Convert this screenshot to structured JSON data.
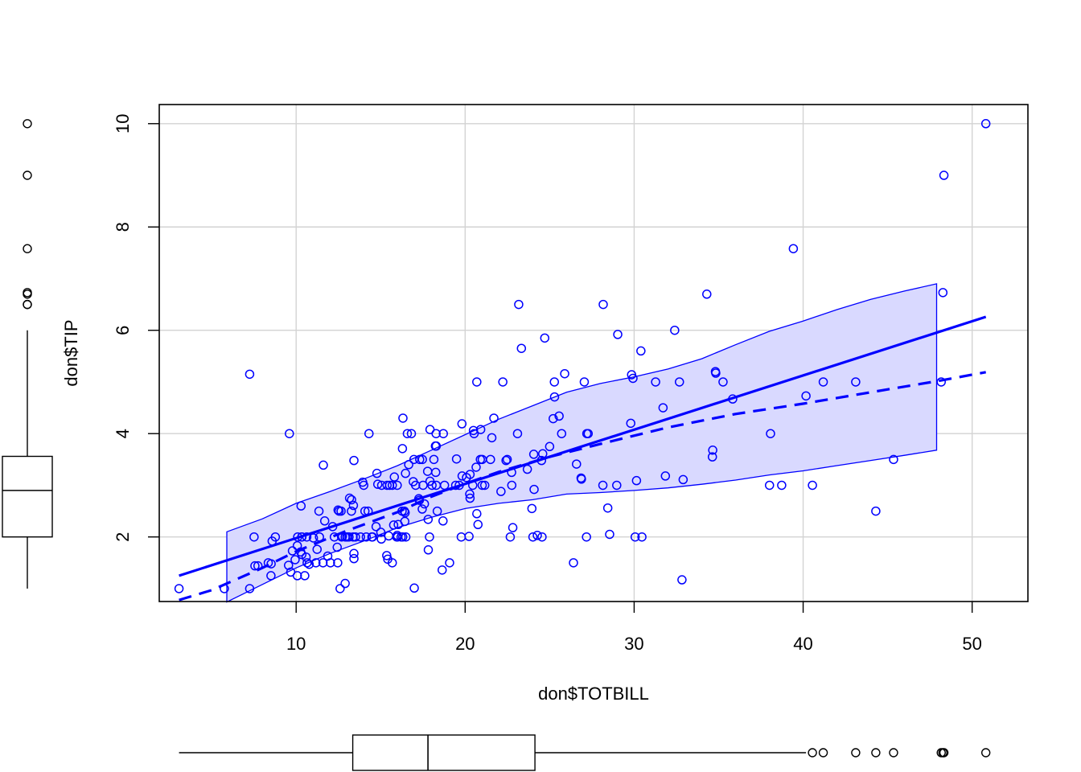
{
  "chart_data": {
    "type": "scatter",
    "title": "",
    "xlabel": "don$TOTBILL",
    "ylabel": "don$TIP",
    "xlim": [
      1.9,
      53.3
    ],
    "ylim": [
      0.75,
      10.37
    ],
    "x_ticks": [
      10,
      20,
      30,
      40,
      50
    ],
    "y_ticks": [
      2,
      4,
      6,
      8,
      10
    ],
    "grid": true,
    "colors": {
      "points": "#0000FF",
      "lines": "#0000FF",
      "band_fill": "#D9D9FF",
      "grid": "#D3D3D3",
      "axes": "#000000"
    },
    "points": [
      [
        3.07,
        1.0
      ],
      [
        5.75,
        1.0
      ],
      [
        7.25,
        5.15
      ],
      [
        7.25,
        1.0
      ],
      [
        7.51,
        2.0
      ],
      [
        7.56,
        1.44
      ],
      [
        7.74,
        1.44
      ],
      [
        8.35,
        1.5
      ],
      [
        8.51,
        1.25
      ],
      [
        8.52,
        1.48
      ],
      [
        8.58,
        1.92
      ],
      [
        8.77,
        2.0
      ],
      [
        9.55,
        1.45
      ],
      [
        9.6,
        4.0
      ],
      [
        9.68,
        1.32
      ],
      [
        9.78,
        1.73
      ],
      [
        9.94,
        1.56
      ],
      [
        10.07,
        1.25
      ],
      [
        10.07,
        1.83
      ],
      [
        10.09,
        2.0
      ],
      [
        10.27,
        1.71
      ],
      [
        10.29,
        2.6
      ],
      [
        10.33,
        2.0
      ],
      [
        10.34,
        1.66
      ],
      [
        10.34,
        2.0
      ],
      [
        10.51,
        1.25
      ],
      [
        10.59,
        1.61
      ],
      [
        10.63,
        2.0
      ],
      [
        10.65,
        1.5
      ],
      [
        10.77,
        1.47
      ],
      [
        11.02,
        1.98
      ],
      [
        11.17,
        1.5
      ],
      [
        11.24,
        1.76
      ],
      [
        11.35,
        2.5
      ],
      [
        11.38,
        2.0
      ],
      [
        11.59,
        1.5
      ],
      [
        11.61,
        3.39
      ],
      [
        11.69,
        2.31
      ],
      [
        11.87,
        1.63
      ],
      [
        12.03,
        1.5
      ],
      [
        12.16,
        2.2
      ],
      [
        12.26,
        2.0
      ],
      [
        12.43,
        1.8
      ],
      [
        12.46,
        1.5
      ],
      [
        12.48,
        2.52
      ],
      [
        12.54,
        2.5
      ],
      [
        12.6,
        1.0
      ],
      [
        12.66,
        2.5
      ],
      [
        12.69,
        2.0
      ],
      [
        12.74,
        2.01
      ],
      [
        12.9,
        1.1
      ],
      [
        12.9,
        2.0
      ],
      [
        13.0,
        2.0
      ],
      [
        13.03,
        2.0
      ],
      [
        13.13,
        2.0
      ],
      [
        13.16,
        2.75
      ],
      [
        13.27,
        2.5
      ],
      [
        13.28,
        2.72
      ],
      [
        13.37,
        2.0
      ],
      [
        13.39,
        2.61
      ],
      [
        13.42,
        3.48
      ],
      [
        13.42,
        1.58
      ],
      [
        13.42,
        1.68
      ],
      [
        13.51,
        2.0
      ],
      [
        13.81,
        2.0
      ],
      [
        13.94,
        3.06
      ],
      [
        14.0,
        3.0
      ],
      [
        14.07,
        2.5
      ],
      [
        14.15,
        2.0
      ],
      [
        14.26,
        2.5
      ],
      [
        14.31,
        4.0
      ],
      [
        14.48,
        2.0
      ],
      [
        14.52,
        2.0
      ],
      [
        14.73,
        2.2
      ],
      [
        14.78,
        3.23
      ],
      [
        14.83,
        3.02
      ],
      [
        15.01,
        2.09
      ],
      [
        15.04,
        1.96
      ],
      [
        15.06,
        3.0
      ],
      [
        15.36,
        1.64
      ],
      [
        15.38,
        3.0
      ],
      [
        15.42,
        1.57
      ],
      [
        15.48,
        2.02
      ],
      [
        15.53,
        3.0
      ],
      [
        15.69,
        3.0
      ],
      [
        15.69,
        1.5
      ],
      [
        15.77,
        2.23
      ],
      [
        15.81,
        3.16
      ],
      [
        15.95,
        2.0
      ],
      [
        15.98,
        3.0
      ],
      [
        15.98,
        2.03
      ],
      [
        16.0,
        2.0
      ],
      [
        16.04,
        2.24
      ],
      [
        16.21,
        2.0
      ],
      [
        16.27,
        2.5
      ],
      [
        16.29,
        3.71
      ],
      [
        16.31,
        2.0
      ],
      [
        16.32,
        4.3
      ],
      [
        16.4,
        2.5
      ],
      [
        16.43,
        2.3
      ],
      [
        16.45,
        2.47
      ],
      [
        16.47,
        3.23
      ],
      [
        16.49,
        2.0
      ],
      [
        16.58,
        4.0
      ],
      [
        16.66,
        3.4
      ],
      [
        16.82,
        4.0
      ],
      [
        16.93,
        3.07
      ],
      [
        16.97,
        3.5
      ],
      [
        16.99,
        1.01
      ],
      [
        17.07,
        3.0
      ],
      [
        17.26,
        2.74
      ],
      [
        17.29,
        2.71
      ],
      [
        17.31,
        3.5
      ],
      [
        17.46,
        2.54
      ],
      [
        17.47,
        3.5
      ],
      [
        17.51,
        3.0
      ],
      [
        17.59,
        2.64
      ],
      [
        17.78,
        3.27
      ],
      [
        17.81,
        2.34
      ],
      [
        17.82,
        1.75
      ],
      [
        17.89,
        2.0
      ],
      [
        17.92,
        4.08
      ],
      [
        17.92,
        3.08
      ],
      [
        18.04,
        3.0
      ],
      [
        18.15,
        3.5
      ],
      [
        18.24,
        3.76
      ],
      [
        18.26,
        3.25
      ],
      [
        18.28,
        4.0
      ],
      [
        18.29,
        3.76
      ],
      [
        18.29,
        3.0
      ],
      [
        18.35,
        2.5
      ],
      [
        18.64,
        1.36
      ],
      [
        18.69,
        2.31
      ],
      [
        18.71,
        4.0
      ],
      [
        18.78,
        3.0
      ],
      [
        19.08,
        1.5
      ],
      [
        19.44,
        3.0
      ],
      [
        19.49,
        3.51
      ],
      [
        19.65,
        3.0
      ],
      [
        19.77,
        2.0
      ],
      [
        19.81,
        4.19
      ],
      [
        19.82,
        3.18
      ],
      [
        20.08,
        3.15
      ],
      [
        20.23,
        2.01
      ],
      [
        20.27,
        2.83
      ],
      [
        20.29,
        2.75
      ],
      [
        20.29,
        3.21
      ],
      [
        20.45,
        3.0
      ],
      [
        20.49,
        4.06
      ],
      [
        20.53,
        4.0
      ],
      [
        20.65,
        3.35
      ],
      [
        20.69,
        2.45
      ],
      [
        20.69,
        5.0
      ],
      [
        20.76,
        2.24
      ],
      [
        20.9,
        3.5
      ],
      [
        20.92,
        4.08
      ],
      [
        21.01,
        3.5
      ],
      [
        21.01,
        3.0
      ],
      [
        21.16,
        3.0
      ],
      [
        21.5,
        3.5
      ],
      [
        21.58,
        3.92
      ],
      [
        21.7,
        4.3
      ],
      [
        22.12,
        2.88
      ],
      [
        22.23,
        5.0
      ],
      [
        22.42,
        3.48
      ],
      [
        22.49,
        3.5
      ],
      [
        22.67,
        2.0
      ],
      [
        22.75,
        3.25
      ],
      [
        22.76,
        3.0
      ],
      [
        22.82,
        2.18
      ],
      [
        23.1,
        4.0
      ],
      [
        23.17,
        6.5
      ],
      [
        23.33,
        5.65
      ],
      [
        23.68,
        3.31
      ],
      [
        23.95,
        2.55
      ],
      [
        24.01,
        2.0
      ],
      [
        24.06,
        3.6
      ],
      [
        24.08,
        2.92
      ],
      [
        24.27,
        2.03
      ],
      [
        24.52,
        3.48
      ],
      [
        24.55,
        2.0
      ],
      [
        24.59,
        3.61
      ],
      [
        24.71,
        5.85
      ],
      [
        25.0,
        3.75
      ],
      [
        25.21,
        4.29
      ],
      [
        25.28,
        5.0
      ],
      [
        25.29,
        4.71
      ],
      [
        25.56,
        4.34
      ],
      [
        25.71,
        4.0
      ],
      [
        25.89,
        5.16
      ],
      [
        26.41,
        1.5
      ],
      [
        26.59,
        3.41
      ],
      [
        26.86,
        3.14
      ],
      [
        26.88,
        3.12
      ],
      [
        27.05,
        5.0
      ],
      [
        27.18,
        2.0
      ],
      [
        27.2,
        4.0
      ],
      [
        27.28,
        4.0
      ],
      [
        28.15,
        3.0
      ],
      [
        28.17,
        6.5
      ],
      [
        28.44,
        2.56
      ],
      [
        28.55,
        2.05
      ],
      [
        28.97,
        3.0
      ],
      [
        29.03,
        5.92
      ],
      [
        29.8,
        4.2
      ],
      [
        29.85,
        5.14
      ],
      [
        29.93,
        5.07
      ],
      [
        30.06,
        2.0
      ],
      [
        30.14,
        3.09
      ],
      [
        30.4,
        5.6
      ],
      [
        30.46,
        2.0
      ],
      [
        31.27,
        5.0
      ],
      [
        31.71,
        4.5
      ],
      [
        31.85,
        3.18
      ],
      [
        32.4,
        6.0
      ],
      [
        32.68,
        5.0
      ],
      [
        32.83,
        1.17
      ],
      [
        32.9,
        3.11
      ],
      [
        34.3,
        6.7
      ],
      [
        34.63,
        3.55
      ],
      [
        34.65,
        3.68
      ],
      [
        34.81,
        5.2
      ],
      [
        34.83,
        5.17
      ],
      [
        35.26,
        5.0
      ],
      [
        35.83,
        4.67
      ],
      [
        38.01,
        3.0
      ],
      [
        38.07,
        4.0
      ],
      [
        38.73,
        3.0
      ],
      [
        39.42,
        7.58
      ],
      [
        40.17,
        4.73
      ],
      [
        40.55,
        3.0
      ],
      [
        41.19,
        5.0
      ],
      [
        43.11,
        5.0
      ],
      [
        44.3,
        2.5
      ],
      [
        45.35,
        3.5
      ],
      [
        48.17,
        5.0
      ],
      [
        48.27,
        6.73
      ],
      [
        48.33,
        9.0
      ],
      [
        50.81,
        10.0
      ]
    ],
    "series": [
      {
        "style": "solid",
        "x": [
          3.07,
          50.81
        ],
        "y": [
          1.25,
          6.26
        ]
      },
      {
        "style": "dashed",
        "x": [
          3.07,
          5.0,
          8.0,
          10.0,
          13.0,
          16.0,
          18.0,
          20.0,
          22.0,
          25.0,
          28.0,
          32.0,
          36.0,
          40.0,
          44.0,
          48.0,
          50.81
        ],
        "y": [
          0.78,
          0.97,
          1.4,
          1.72,
          2.12,
          2.48,
          2.78,
          3.03,
          3.26,
          3.55,
          3.8,
          4.12,
          4.38,
          4.58,
          4.8,
          5.02,
          5.19
        ]
      }
    ],
    "band": {
      "x": [
        5.9,
        8.0,
        10.0,
        12.0,
        14.0,
        16.0,
        18.0,
        20.0,
        22.0,
        24.0,
        26.0,
        28.0,
        30.0,
        32.0,
        34.0,
        36.0,
        38.0,
        40.0,
        42.0,
        44.0,
        46.0,
        47.9
      ],
      "upper": [
        2.1,
        2.35,
        2.65,
        2.88,
        3.12,
        3.38,
        3.68,
        3.98,
        4.28,
        4.54,
        4.8,
        4.97,
        5.1,
        5.25,
        5.45,
        5.72,
        5.98,
        6.18,
        6.4,
        6.6,
        6.76,
        6.9
      ],
      "lower": [
        0.74,
        1.08,
        1.4,
        1.68,
        1.92,
        2.18,
        2.38,
        2.55,
        2.65,
        2.72,
        2.83,
        2.86,
        2.9,
        2.95,
        3.02,
        3.1,
        3.2,
        3.28,
        3.38,
        3.48,
        3.58,
        3.68
      ]
    },
    "x_boxplot": {
      "whisker_low": 3.07,
      "q1": 13.35,
      "median": 17.8,
      "q3": 24.13,
      "whisker_high": 40.17,
      "outliers": [
        40.55,
        41.19,
        43.11,
        44.3,
        45.35,
        48.17,
        48.27,
        48.33,
        50.81
      ]
    },
    "y_boxplot": {
      "whisker_low": 1.0,
      "q1": 2.0,
      "median": 2.9,
      "q3": 3.56,
      "whisker_high": 6.0,
      "outliers": [
        6.5,
        6.5,
        6.7,
        6.73,
        7.58,
        9.0,
        10.0
      ]
    }
  }
}
